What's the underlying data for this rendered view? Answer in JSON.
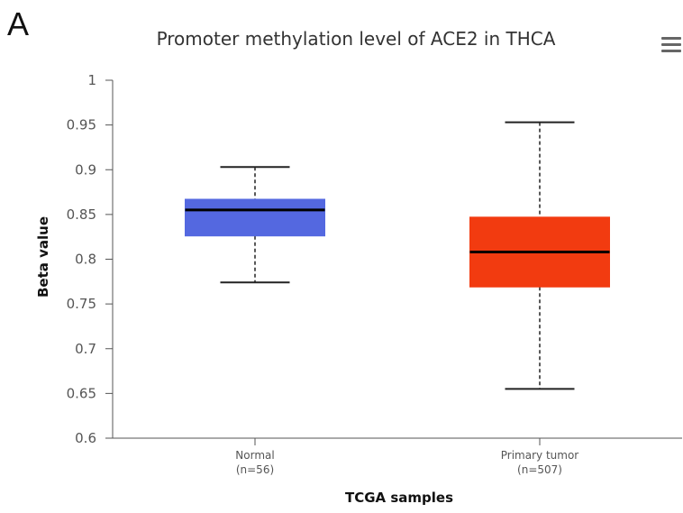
{
  "panel_label": "A",
  "menu_icon": "hamburger-menu-icon",
  "chart_data": {
    "type": "boxplot",
    "title": "Promoter methylation level of ACE2 in THCA",
    "xlabel": "TCGA samples",
    "ylabel": "Beta value",
    "ylim": [
      0.6,
      1
    ],
    "yticks": [
      "0.6",
      "0.65",
      "0.7",
      "0.75",
      "0.8",
      "0.85",
      "0.9",
      "0.95",
      "1"
    ],
    "grid": false,
    "categories": [
      {
        "name": "Normal",
        "n_label": "(n=56)",
        "min": 0.774,
        "q1": 0.826,
        "median": 0.855,
        "q3": 0.867,
        "max": 0.903,
        "color": "#5468E0"
      },
      {
        "name": "Primary tumor",
        "n_label": "(n=507)",
        "min": 0.655,
        "q1": 0.769,
        "median": 0.808,
        "q3": 0.847,
        "max": 0.953,
        "color": "#F23B10"
      }
    ]
  }
}
